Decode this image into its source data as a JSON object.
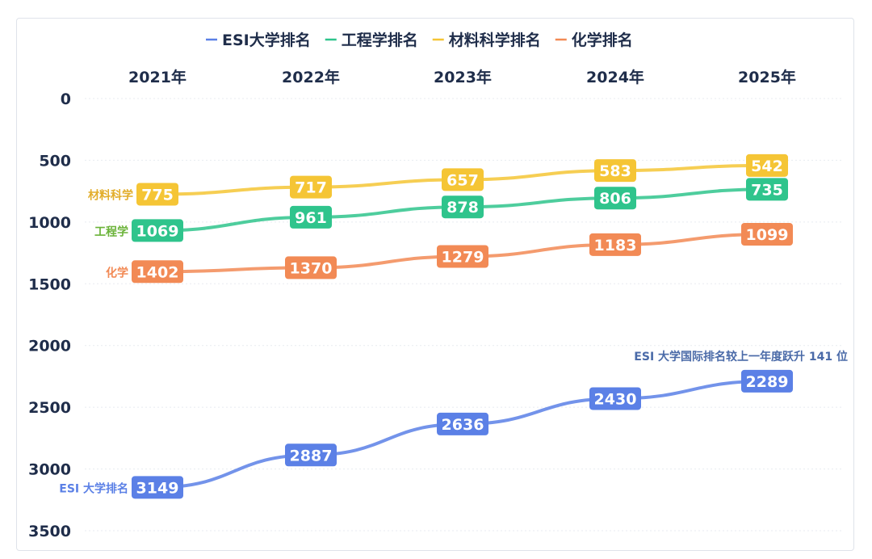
{
  "chart_data": {
    "type": "line",
    "title": "",
    "x": [
      "2021年",
      "2022年",
      "2023年",
      "2024年",
      "2025年"
    ],
    "ylim": [
      0,
      3500
    ],
    "y_inverted": true,
    "yticks": [
      0,
      500,
      1000,
      1500,
      2000,
      2500,
      3000,
      3500
    ],
    "grid": true,
    "legend_position": "top",
    "series": [
      {
        "name": "ESI大学排名",
        "side_label": "ESI 大学排名",
        "color": "#5b80e6",
        "values": [
          3149,
          2887,
          2636,
          2430,
          2289
        ]
      },
      {
        "name": "工程学排名",
        "side_label": "工程学",
        "color": "#2fc48c",
        "side_color": "#6bb33a",
        "values": [
          1069,
          961,
          878,
          806,
          735
        ]
      },
      {
        "name": "材料科学排名",
        "side_label": "材料科学",
        "color": "#f5c535",
        "side_color": "#e2ad2a",
        "values": [
          775,
          717,
          657,
          583,
          542
        ]
      },
      {
        "name": "化学排名",
        "side_label": "化学",
        "color": "#f28a55",
        "values": [
          1402,
          1370,
          1279,
          1183,
          1099
        ]
      }
    ],
    "annotation": "ESI 大学国际排名较上一年度跃升 141 位"
  }
}
